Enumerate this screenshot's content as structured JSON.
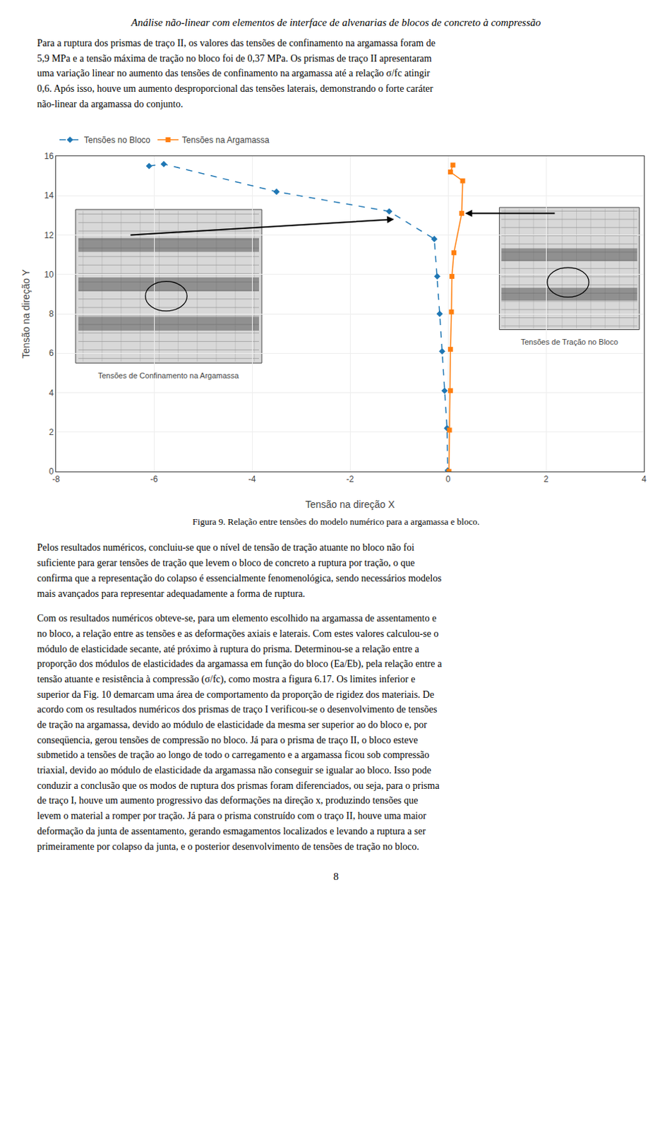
{
  "header": "Análise não-linear com elementos de interface de alvenarias de blocos de concreto à compressão",
  "paragraphs": [
    "Para a ruptura dos prismas de traço II, os valores das tensões de confinamento na argamassa foram de\n5,9 MPa e a tensão máxima de tração no bloco foi de 0,37 MPa. Os prismas de traço II apresentaram\numa variação linear no aumento das tensões de confinamento na argamassa até a relação σ/fc atingir\n0,6. Após isso, houve um aumento desproporcional das tensões laterais, demonstrando o forte caráter\nnão-linear da argamassa do conjunto.",
    "Pelos resultados numéricos, concluiu-se que o nível de tensão de tração atuante no bloco não foi\nsuficiente para gerar tensões de tração que levem o bloco de concreto a ruptura por tração, o que\nconfirma que a representação do colapso é essencialmente fenomenológica, sendo necessários modelos\nmais avançados para representar adequadamente a forma de ruptura.",
    "Com os resultados numéricos obteve-se, para um elemento escolhido na argamassa de assentamento e\nno bloco, a relação entre as tensões e as deformações axiais e laterais. Com estes valores calculou-se o\nmódulo de elasticidade secante, até próximo à ruptura do prisma. Determinou-se a relação entre a\nproporção dos módulos de elasticidades da argamassa em função do bloco (Ea/Eb), pela relação entre a\ntensão atuante e resistência à compressão (σ/fc), como mostra a figura 6.17. Os limites inferior e\nsuperior da Fig. 10 demarcam uma área de comportamento da proporção de rigidez dos materiais. De\nacordo com os resultados numéricos dos prismas de traço I verificou-se o desenvolvimento de tensões\nde tração na argamassa, devido ao módulo de elasticidade da mesma ser superior ao do bloco e, por\nconseqüencia, gerou tensões de compressão no bloco. Já para o prisma de traço II, o bloco esteve\nsubmetido a tensões de tração ao longo de todo o carregamento e a argamassa ficou sob compressão\ntriaxial, devido ao módulo de elasticidade da argamassa não conseguir se igualar ao bloco. Isso pode\nconduzir a conclusão que os modos de ruptura dos prismas foram diferenciados, ou seja, para o prisma\nde traço I, houve um aumento progressivo das deformações na direção x, produzindo tensões que\nlevem o material a romper por tração. Já para o prisma construído com o traço II, houve uma maior\ndeformação da junta de assentamento, gerando esmagamentos localizados e levando a ruptura a ser\nprimeiramente por colapso da junta, e o posterior desenvolvimento de tensões de tração no bloco."
  ],
  "page_number": "8",
  "chart_data": {
    "type": "line",
    "title": "Figura 9. Relação entre tensões do modelo numérico para a argamassa e bloco.",
    "x_label": "Tensão na direção X",
    "y_label": "Tensão na direção Y",
    "annotations": [
      "Tensões de Confinamento na Argamassa",
      "Tensões de Tração no Bloco"
    ],
    "series": [
      {
        "name": "Tensões no Bloco",
        "x": [
          -6.1,
          -5.8,
          -3.5,
          -1.2,
          -0.28,
          -0.22,
          -0.17,
          -0.12,
          -0.07,
          -0.02,
          -0.005
        ],
        "values": [
          15.5,
          15.6,
          14.2,
          13.2,
          11.8,
          9.9,
          8.0,
          6.1,
          4.1,
          2.2,
          0.05
        ],
        "marker": "diamond",
        "line_style": "dash"
      },
      {
        "name": "Tensões na Argamassa",
        "x": [
          0.02,
          0.03,
          0.05,
          0.05,
          0.07,
          0.08,
          0.12,
          0.28,
          0.3,
          0.05,
          0.1
        ],
        "values": [
          0.0,
          2.1,
          4.1,
          6.2,
          8.1,
          9.9,
          11.1,
          13.1,
          14.75,
          15.2,
          15.55
        ],
        "marker": "square",
        "line_style": "solid"
      }
    ],
    "xlim": [
      -8,
      4
    ],
    "ylim": [
      0,
      16
    ],
    "xticks": [
      -8,
      -6,
      -4,
      -2,
      0,
      2,
      4
    ],
    "yticks": [
      0,
      2,
      4,
      6,
      8,
      10,
      12,
      14,
      16
    ],
    "grid": true,
    "legend": "top"
  }
}
